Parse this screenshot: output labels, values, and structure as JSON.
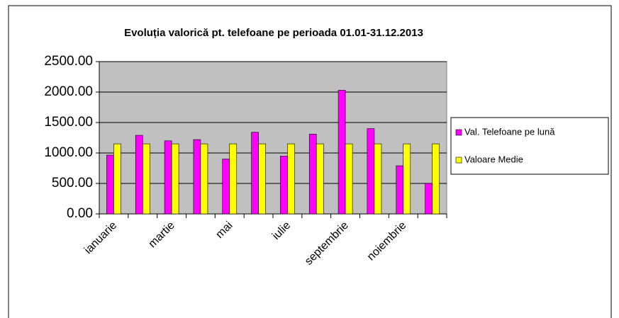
{
  "chart_data": {
    "type": "bar",
    "title": "Evoluția valorică pt. telefoane pe perioada 01.01-31.12.2013",
    "categories": [
      "ianuarie",
      null,
      "martie",
      null,
      "mai",
      null,
      "iulie",
      null,
      "septembrie",
      null,
      "noiembrie",
      null
    ],
    "series": [
      {
        "name": "Val. Telefoane pe lună",
        "color": "#ff00ff",
        "values": [
          965,
          1290,
          1200,
          1220,
          900,
          1340,
          950,
          1310,
          2030,
          1400,
          790,
          500
        ]
      },
      {
        "name": "Valoare Medie",
        "color": "#ffff00",
        "values": [
          1150,
          1150,
          1150,
          1150,
          1150,
          1150,
          1150,
          1150,
          1150,
          1150,
          1150,
          1150
        ]
      }
    ],
    "ylim": [
      0,
      2500
    ],
    "yticks": [
      {
        "value": 0,
        "label": "0.00"
      },
      {
        "value": 500,
        "label": "500.00"
      },
      {
        "value": 1000,
        "label": "1000.00"
      },
      {
        "value": 1500,
        "label": "1500.00"
      },
      {
        "value": 2000,
        "label": "2000.00"
      },
      {
        "value": 2500,
        "label": "2500.00"
      }
    ],
    "grid": true,
    "legend": "right"
  }
}
